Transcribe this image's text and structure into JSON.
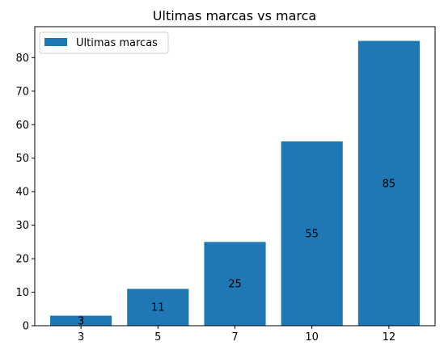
{
  "chart_data": {
    "type": "bar",
    "title": "Ultimas marcas vs marca",
    "xlabel": "",
    "ylabel": "",
    "categories": [
      "3",
      "5",
      "7",
      "10",
      "12"
    ],
    "series": [
      {
        "name": "Ultimas marcas",
        "values": [
          3,
          11,
          25,
          55,
          85
        ],
        "color": "#1f77b4"
      }
    ],
    "data_labels": [
      "3",
      "11",
      "25",
      "55",
      "85"
    ],
    "ylim": [
      0,
      89.25
    ],
    "yticks": [
      0,
      10,
      20,
      30,
      40,
      50,
      60,
      70,
      80
    ],
    "legend": "top-left",
    "grid": false
  }
}
